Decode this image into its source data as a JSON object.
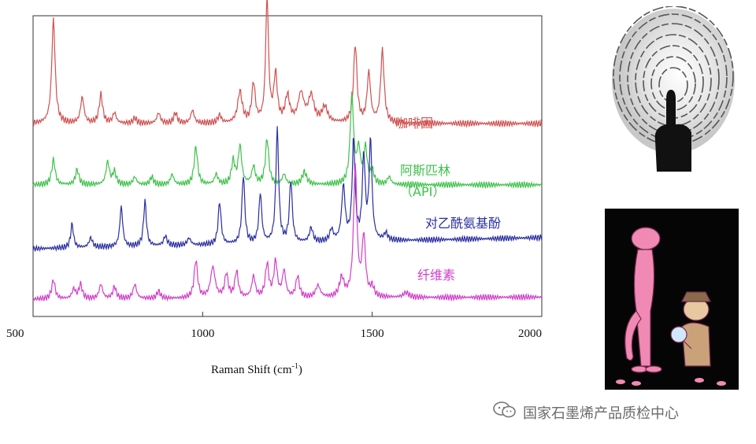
{
  "chart_data": {
    "type": "line",
    "title": "",
    "xlabel": "Raman Shift (cm",
    "xlabel_sup": "-1",
    "xlabel_end": ")",
    "ylabel": "",
    "xlim": [
      500,
      2000
    ],
    "xticks": [
      500,
      1000,
      1500,
      2000
    ],
    "xtick_labels": [
      "500",
      "1000",
      "1500",
      "2000"
    ],
    "grid": false,
    "legend": "inline labels at right",
    "series": [
      {
        "name": "咖啡因",
        "color": "#d05050",
        "baseline": 1.0,
        "peaks": [
          [
            560,
            4.0,
            6
          ],
          [
            645,
            1.0,
            6
          ],
          [
            700,
            1.1,
            6
          ],
          [
            740,
            0.4,
            6
          ],
          [
            800,
            0.2,
            6
          ],
          [
            870,
            0.4,
            6
          ],
          [
            920,
            0.4,
            6
          ],
          [
            970,
            0.5,
            6
          ],
          [
            1050,
            0.3,
            6
          ],
          [
            1110,
            1.2,
            8
          ],
          [
            1150,
            1.5,
            6
          ],
          [
            1190,
            4.8,
            5
          ],
          [
            1215,
            1.8,
            6
          ],
          [
            1250,
            1.0,
            8
          ],
          [
            1290,
            1.1,
            10
          ],
          [
            1320,
            1.0,
            10
          ],
          [
            1360,
            0.6,
            10
          ],
          [
            1450,
            3.0,
            6
          ],
          [
            1490,
            1.9,
            6
          ],
          [
            1530,
            2.8,
            6
          ]
        ]
      },
      {
        "name": "阿斯匹林",
        "name_line2": "（API）",
        "color": "#3ec24a",
        "baseline": 0.6,
        "peaks": [
          [
            560,
            1.0,
            6
          ],
          [
            630,
            0.6,
            6
          ],
          [
            720,
            0.9,
            6
          ],
          [
            740,
            0.5,
            6
          ],
          [
            800,
            0.3,
            6
          ],
          [
            850,
            0.3,
            6
          ],
          [
            910,
            0.4,
            6
          ],
          [
            980,
            1.5,
            6
          ],
          [
            1040,
            0.4,
            6
          ],
          [
            1090,
            0.9,
            6
          ],
          [
            1110,
            1.5,
            6
          ],
          [
            1150,
            0.7,
            6
          ],
          [
            1190,
            1.8,
            6
          ],
          [
            1240,
            0.4,
            6
          ],
          [
            1300,
            0.5,
            8
          ],
          [
            1440,
            3.5,
            6
          ],
          [
            1460,
            1.3,
            6
          ],
          [
            1480,
            1.4,
            6
          ],
          [
            1500,
            0.5,
            6
          ],
          [
            1550,
            0.3,
            6
          ]
        ]
      },
      {
        "name": "对乙酰氨基酚",
        "color": "#2a2fa0",
        "baseline": 0.0,
        "peaks": [
          [
            615,
            1.0,
            5
          ],
          [
            670,
            0.4,
            6
          ],
          [
            760,
            1.7,
            5
          ],
          [
            830,
            1.9,
            5
          ],
          [
            890,
            0.4,
            6
          ],
          [
            960,
            0.3,
            6
          ],
          [
            1050,
            1.8,
            5
          ],
          [
            1120,
            2.9,
            5
          ],
          [
            1170,
            2.1,
            5
          ],
          [
            1220,
            4.8,
            5
          ],
          [
            1260,
            2.6,
            5
          ],
          [
            1320,
            0.6,
            6
          ],
          [
            1380,
            0.5,
            6
          ],
          [
            1415,
            2.3,
            6
          ],
          [
            1445,
            4.2,
            5
          ],
          [
            1475,
            3.5,
            5
          ],
          [
            1495,
            4.2,
            5
          ],
          [
            1540,
            0.3,
            6
          ]
        ]
      },
      {
        "name": "纤维素",
        "color": "#d040c8",
        "baseline": 0.0,
        "peaks": [
          [
            560,
            0.8,
            6
          ],
          [
            620,
            0.4,
            6
          ],
          [
            640,
            0.6,
            6
          ],
          [
            700,
            0.6,
            6
          ],
          [
            740,
            0.5,
            6
          ],
          [
            800,
            0.6,
            6
          ],
          [
            870,
            0.3,
            6
          ],
          [
            980,
            1.6,
            6
          ],
          [
            1030,
            1.3,
            8
          ],
          [
            1070,
            1.0,
            6
          ],
          [
            1100,
            1.1,
            6
          ],
          [
            1150,
            0.9,
            6
          ],
          [
            1190,
            1.4,
            6
          ],
          [
            1215,
            1.5,
            6
          ],
          [
            1240,
            1.1,
            6
          ],
          [
            1280,
            0.9,
            6
          ],
          [
            1340,
            0.5,
            8
          ],
          [
            1410,
            0.8,
            8
          ],
          [
            1450,
            5.5,
            6
          ],
          [
            1475,
            2.5,
            6
          ],
          [
            1500,
            0.4,
            6
          ],
          [
            1600,
            0.2,
            10
          ]
        ]
      }
    ]
  },
  "watermark": {
    "text": "国家石墨烯产品质检中心",
    "icon": "wechat-icon"
  },
  "images": {
    "fingerprint": "fingerprint-illustration",
    "cartoon": "pink-panther-detective-cartoon"
  }
}
